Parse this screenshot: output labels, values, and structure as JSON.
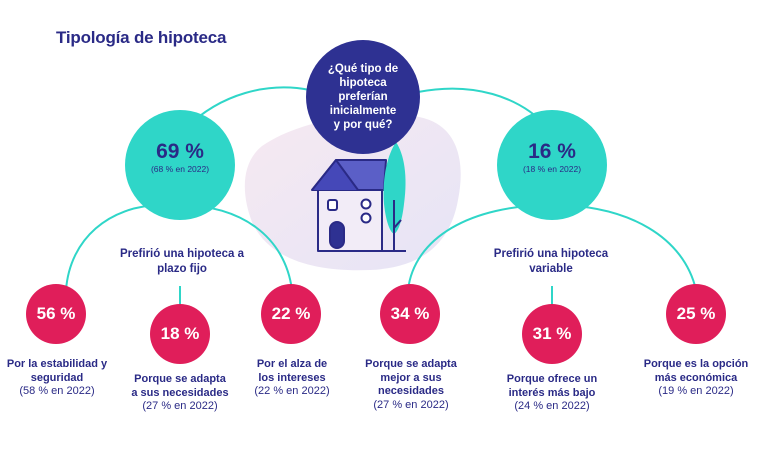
{
  "title": "Tipología de hipoteca",
  "question": "¿Qué tipo de hipoteca preferían inicialmente y por qué?",
  "colors": {
    "navy": "#2e3192",
    "teal": "#2fd6c8",
    "pink": "#e01e5a"
  },
  "fixed": {
    "value": "69 %",
    "prev": "(68 % en 2022)",
    "trend": "up",
    "label": "Prefirió una hipoteca a plazo fijo",
    "reasons": [
      {
        "value": "56 %",
        "label": "Por la estabilidad y seguridad",
        "prev": "(58 % en 2022)"
      },
      {
        "value": "18 %",
        "label": "Porque se adapta a sus necesidades",
        "prev": "(27 % en 2022)"
      },
      {
        "value": "22 %",
        "label": "Por el alza de los intereses",
        "prev": "(22 % en 2022)"
      }
    ]
  },
  "variable": {
    "value": "16 %",
    "prev": "(18 % en 2022)",
    "trend": "down",
    "label": "Prefirió una hipoteca variable",
    "reasons": [
      {
        "value": "34 %",
        "label": "Porque se adapta mejor a sus necesidades",
        "prev": "(27 % en 2022)"
      },
      {
        "value": "31 %",
        "label": "Porque ofrece un interés más bajo",
        "prev": "(24 % en 2022)"
      },
      {
        "value": "25 %",
        "label": "Porque es la opción más económica",
        "prev": "(19 % en 2022)"
      }
    ]
  }
}
